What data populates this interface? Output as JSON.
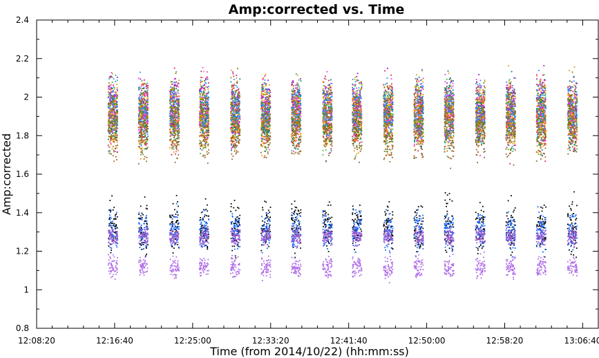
{
  "chart_data": {
    "type": "scatter",
    "title": "Amp:corrected vs. Time",
    "xlabel": "Time (from 2014/10/22) (hh:mm:ss)",
    "ylabel": "Amp:corrected",
    "xlim": [
      "12:08:20",
      "13:08:20"
    ],
    "ylim": [
      0.8,
      2.4
    ],
    "y_ticks": [
      "0.8",
      "1",
      "1.2",
      "1.4",
      "1.6",
      "1.8",
      "2",
      "2.2",
      "2.4"
    ],
    "x_ticks": [
      "12:08:20",
      "12:16:40",
      "12:25:00",
      "12:33:20",
      "12:41:40",
      "12:50:00",
      "12:58:20",
      "13:06:40"
    ],
    "grid": false,
    "scan_times": [
      "12:16:25",
      "12:19:40",
      "12:23:00",
      "12:26:10",
      "12:29:30",
      "12:32:45",
      "12:36:00",
      "12:39:20",
      "12:42:30",
      "12:45:50",
      "12:49:05",
      "12:52:20",
      "12:55:40",
      "12:58:55",
      "13:02:10",
      "13:05:30"
    ],
    "scan_width_sec": 60,
    "series": [
      {
        "color": "#e6194b",
        "y_center": 1.92,
        "y_spread": 0.22
      },
      {
        "color": "#3cb44b",
        "y_center": 1.9,
        "y_spread": 0.22
      },
      {
        "color": "#d4a017",
        "y_center": 1.93,
        "y_spread": 0.22
      },
      {
        "color": "#911eb4",
        "y_center": 1.95,
        "y_spread": 0.2
      },
      {
        "color": "#008080",
        "y_center": 1.91,
        "y_spread": 0.22
      },
      {
        "color": "#f032e6",
        "y_center": 1.92,
        "y_spread": 0.21
      },
      {
        "color": "#ff8c00",
        "y_center": 1.9,
        "y_spread": 0.22
      },
      {
        "color": "#9a6324",
        "y_center": 1.8,
        "y_spread": 0.16
      },
      {
        "color": "#1e90ff",
        "y_center": 1.94,
        "y_spread": 0.2
      },
      {
        "color": "#808000",
        "y_center": 1.91,
        "y_spread": 0.21
      },
      {
        "color": "#000000",
        "y_center": 1.33,
        "y_spread": 0.17
      },
      {
        "color": "#1565ff",
        "y_center": 1.31,
        "y_spread": 0.13
      },
      {
        "color": "#b06ee8",
        "y_center": 1.12,
        "y_spread": 0.07
      },
      {
        "color": "#9b59d0",
        "y_center": 1.28,
        "y_spread": 0.06
      }
    ]
  }
}
